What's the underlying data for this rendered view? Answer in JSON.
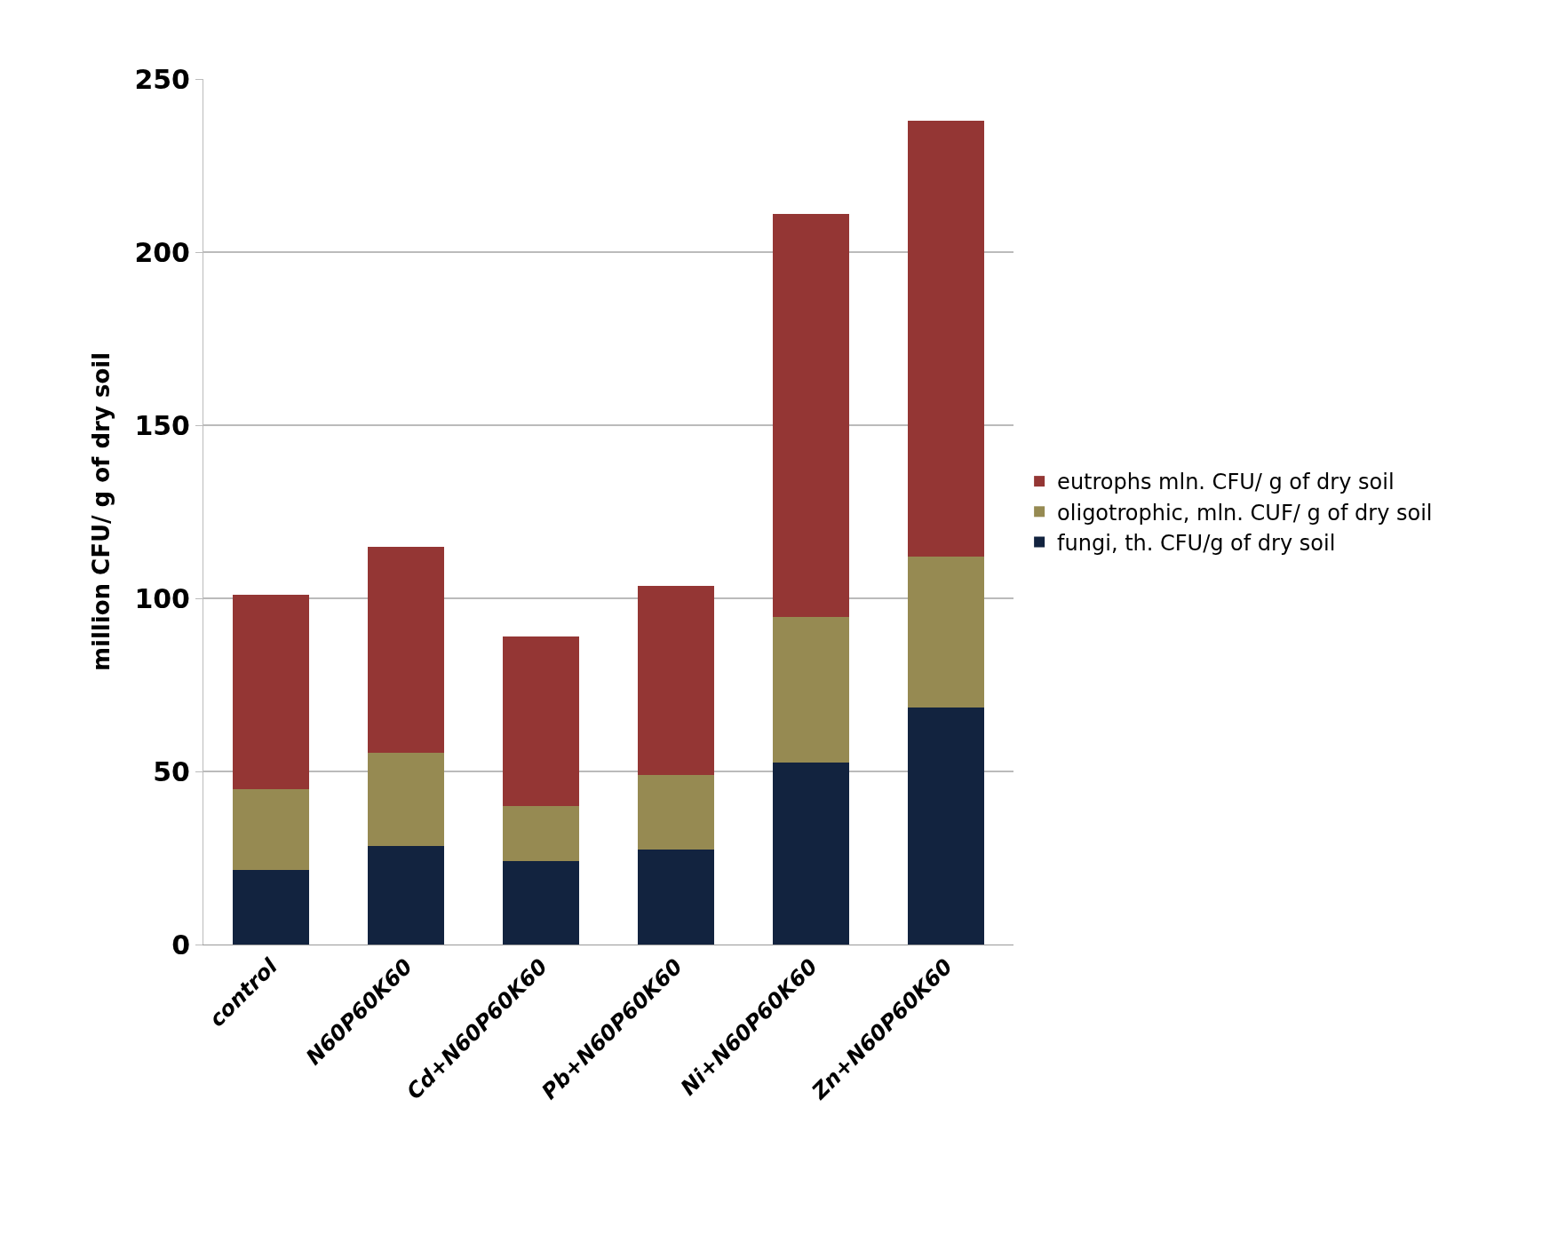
{
  "chart_data": {
    "type": "bar",
    "stacked": true,
    "categories": [
      "control",
      "N60P60K60",
      "Cd+N60P60K60",
      "Pb+N60P60K60",
      "Ni+N60P60K60",
      "Zn+N60P60K60"
    ],
    "ylabel": "million CFU/ g of dry soil",
    "series": [
      {
        "name": "fungi, th. CFU/g of dry soil",
        "color": "#12233f",
        "values": [
          21.5,
          28.5,
          24,
          27.5,
          52.5,
          68.5
        ]
      },
      {
        "name": "oligotrophic, mln. CUF/ g of dry soil",
        "color": "#968a52",
        "values": [
          23.5,
          27,
          16,
          21.5,
          42,
          43.5
        ]
      },
      {
        "name": "eutrophs mln. CFU/ g of dry soil",
        "color": "#943634",
        "values": [
          56,
          59.5,
          49,
          54.5,
          116.5,
          126
        ]
      }
    ],
    "ylim": [
      0,
      250
    ],
    "yticks": [
      0,
      50,
      100,
      150,
      200,
      250
    ],
    "grid": "y",
    "legend": "right"
  }
}
